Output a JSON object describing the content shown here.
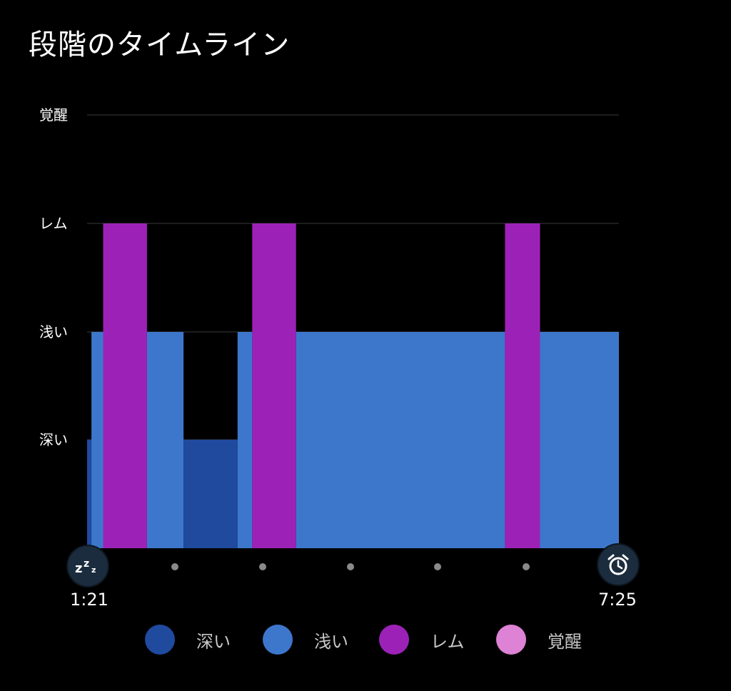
{
  "title": "段階のタイムライン",
  "colors": {
    "deep": "#1f4a9e",
    "light": "#3d77cc",
    "rem": "#9c22b7",
    "awake": "#dd82d5",
    "grid": "#3a3a3a"
  },
  "chart_data": {
    "type": "bar",
    "title": "段階のタイムライン",
    "y_levels": [
      "深い",
      "浅い",
      "レム",
      "覚醒"
    ],
    "x_start_label": "1:21",
    "x_end_label": "7:25",
    "x_range": [
      "1:21",
      "7:25"
    ],
    "grid": true,
    "legend_position": "bottom",
    "segments": [
      {
        "stage": "深い",
        "start": "1:21",
        "end": "1:24"
      },
      {
        "stage": "浅い",
        "start": "1:24",
        "end": "1:32"
      },
      {
        "stage": "レム",
        "start": "1:32",
        "end": "2:02"
      },
      {
        "stage": "浅い",
        "start": "2:02",
        "end": "2:27"
      },
      {
        "stage": "深い",
        "start": "2:27",
        "end": "3:04"
      },
      {
        "stage": "浅い",
        "start": "3:04",
        "end": "3:14"
      },
      {
        "stage": "レム",
        "start": "3:14",
        "end": "3:44"
      },
      {
        "stage": "浅い",
        "start": "3:44",
        "end": "6:07"
      },
      {
        "stage": "レム",
        "start": "6:07",
        "end": "6:31"
      },
      {
        "stage": "浅い",
        "start": "6:31",
        "end": "7:25"
      }
    ]
  },
  "legend": [
    {
      "label": "深い",
      "color": "#1f4a9e"
    },
    {
      "label": "浅い",
      "color": "#3d77cc"
    },
    {
      "label": "レム",
      "color": "#9c22b7"
    },
    {
      "label": "覚醒",
      "color": "#dd82d5"
    }
  ],
  "icons": {
    "start": "sleep-zzz-icon",
    "end": "alarm-clock-icon"
  }
}
